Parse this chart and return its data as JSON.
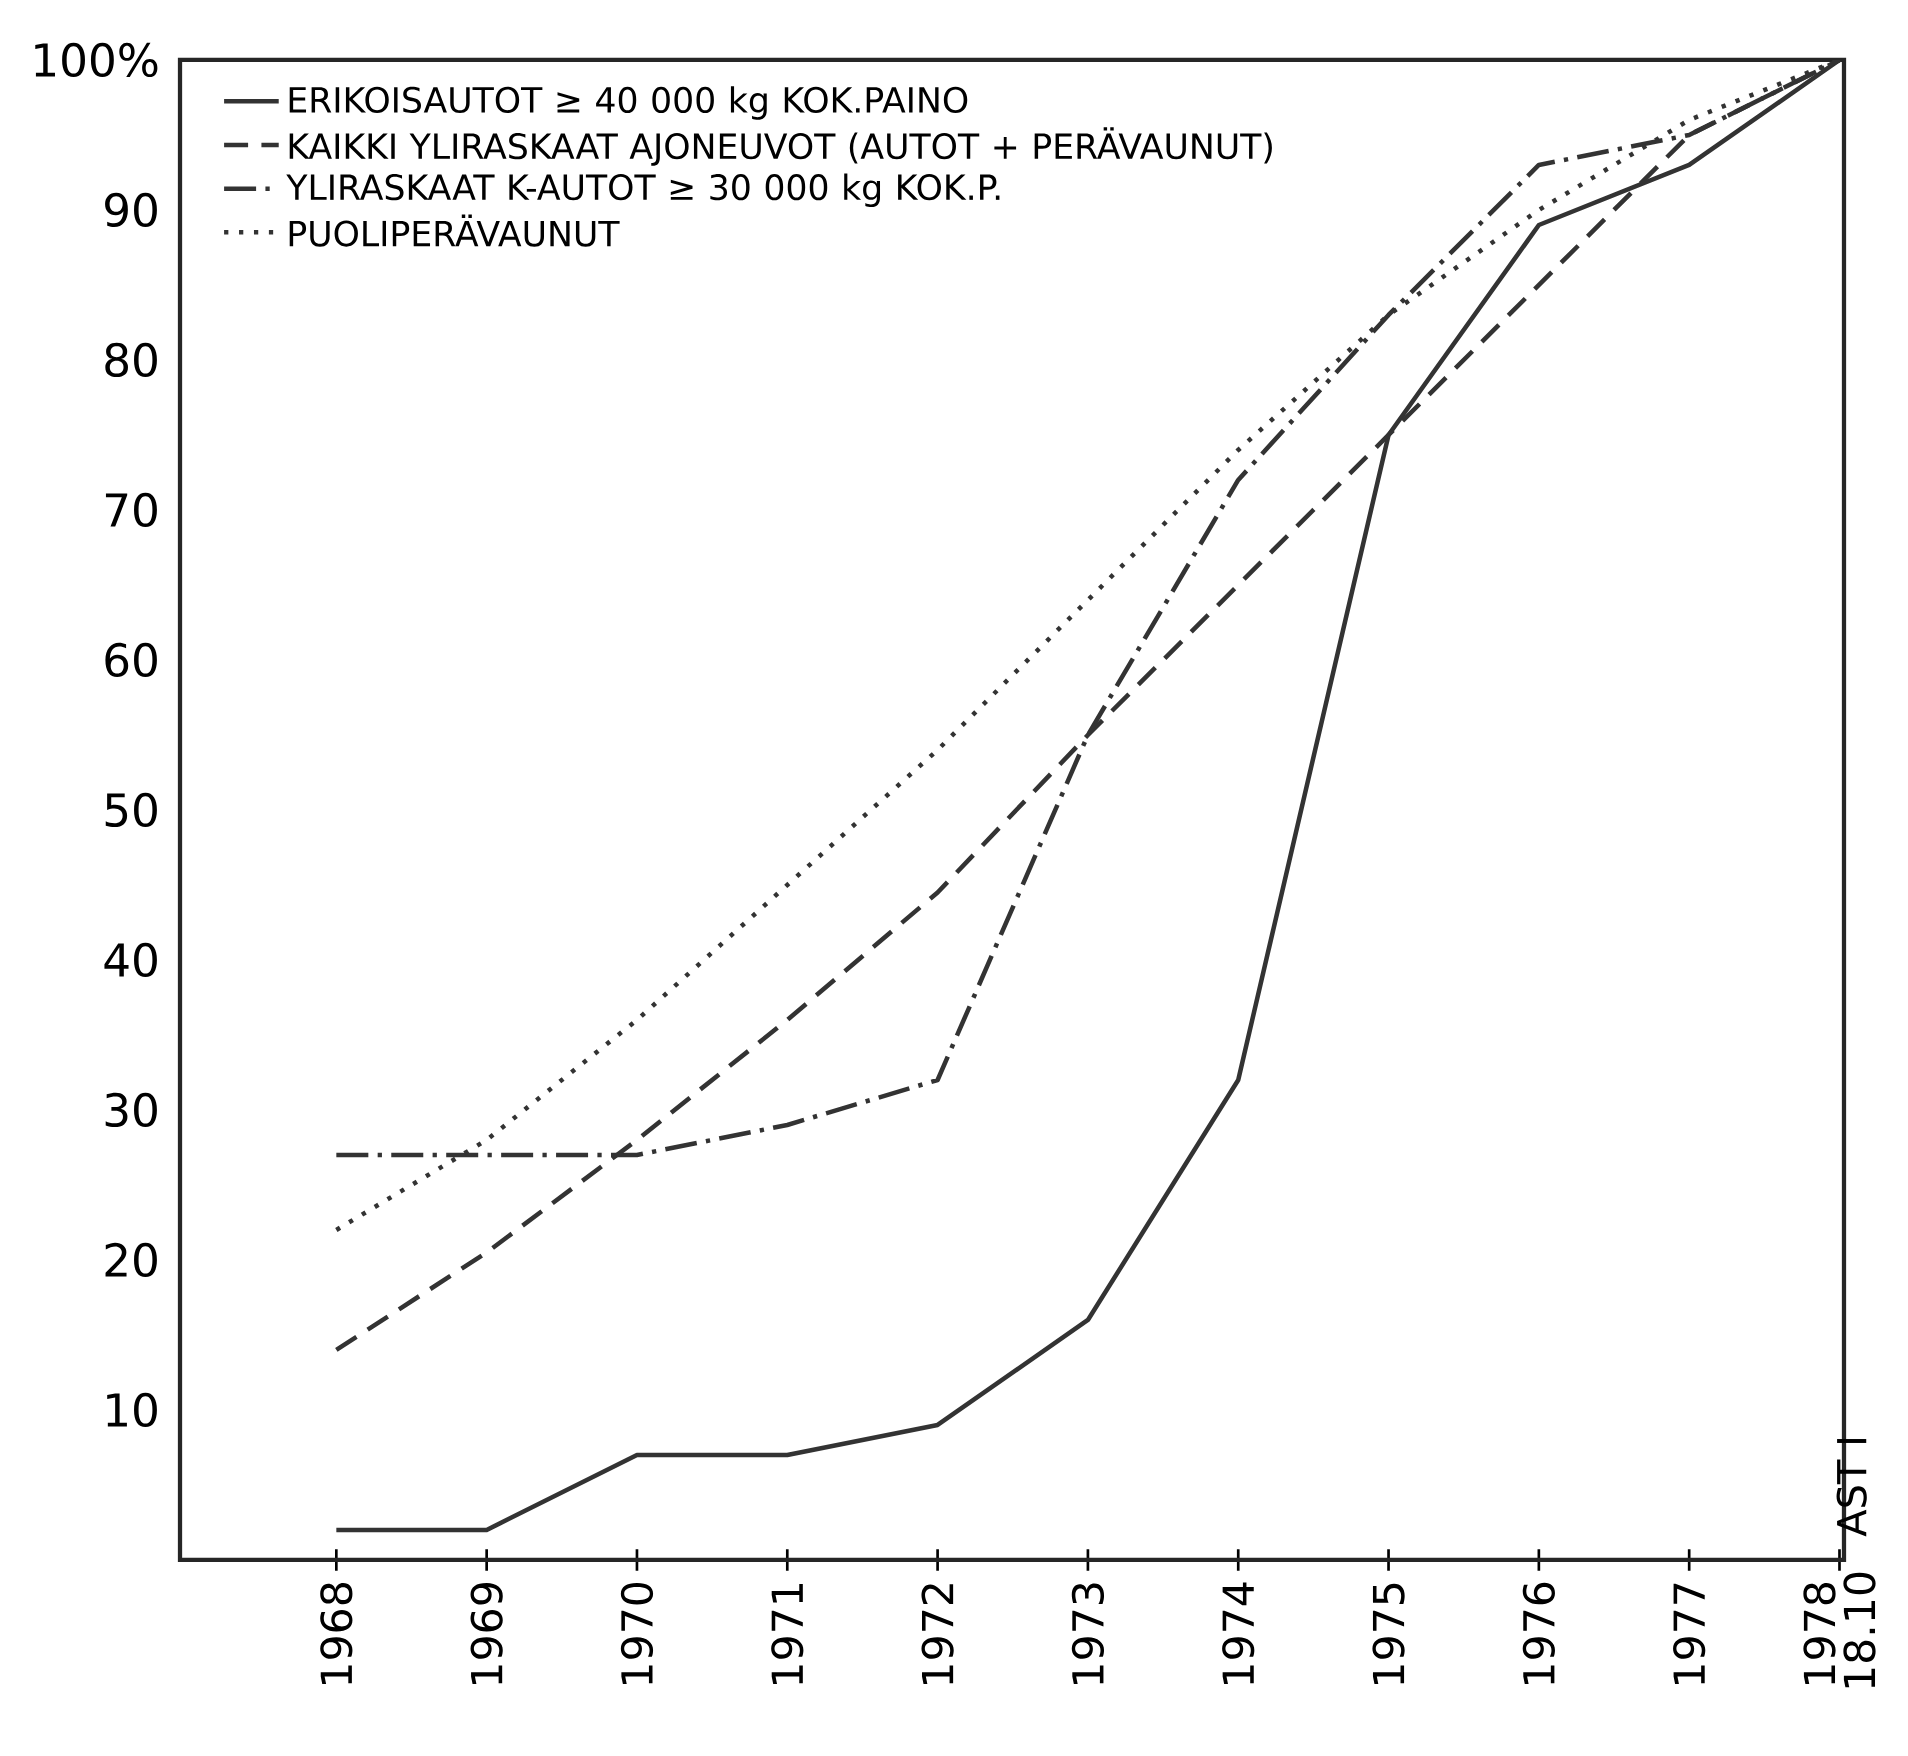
{
  "chart_data": {
    "type": "line",
    "categories": [
      "1968",
      "1969",
      "1970",
      "1971",
      "1972",
      "1973",
      "1974",
      "1975",
      "1976",
      "1977",
      "1978 18.10"
    ],
    "ylim": [
      0,
      100
    ],
    "yticks": [
      10,
      20,
      30,
      40,
      50,
      60,
      70,
      80,
      90,
      {
        "value": 100,
        "label": "100%"
      }
    ],
    "legend": "top left",
    "marker": "none",
    "grid": false,
    "annotations": [
      "AST I"
    ],
    "series": [
      {
        "name": "ERIKOISAUTOT ≥ 40 000 kg KOK.PAINO",
        "color": "#333333",
        "line_style": "solid",
        "values": [
          2,
          2,
          7,
          7,
          9,
          16,
          32,
          75,
          89,
          93,
          100
        ]
      },
      {
        "name": "KAIKKI YLIRASKAAT AJONEUVOT (AUTOT + PERÄVAUNUT)",
        "color": "#333333",
        "line_style": "dashed",
        "values": [
          14,
          20.5,
          28,
          36,
          44.5,
          55,
          65,
          75,
          85,
          95,
          100
        ]
      },
      {
        "name": "YLIRASKAAT K-AUTOT ≥ 30 000 kg KOK.P.",
        "color": "#333333",
        "line_style": "dashdot",
        "values": [
          27,
          27,
          27,
          29,
          32,
          55,
          72,
          83,
          93,
          95,
          100
        ]
      },
      {
        "name": "PUOLIPERÄVAUNUT",
        "color": "#333333",
        "line_style": "dotted",
        "values": [
          22,
          28,
          36,
          45,
          54,
          64,
          74,
          83,
          90,
          96,
          100
        ]
      }
    ]
  }
}
